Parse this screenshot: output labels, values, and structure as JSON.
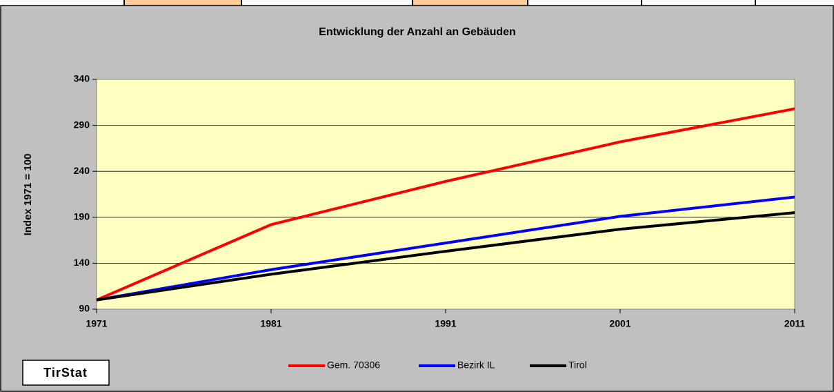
{
  "chart_data": {
    "type": "line",
    "title": "Entwicklung der Anzahl an Gebäuden",
    "y_label": "Index 1971 = 100",
    "x": [
      1971,
      1981,
      1991,
      2001,
      2011
    ],
    "xlim": [
      1971,
      2011
    ],
    "xticks": [
      1971,
      1981,
      1991,
      2001,
      2011
    ],
    "ylim": [
      90,
      340
    ],
    "yticks": [
      90,
      140,
      190,
      240,
      290,
      340
    ],
    "grid": true,
    "legend": "bottom",
    "series": [
      {
        "name": "Gem. 70306",
        "color": "#ff0000",
        "values": [
          100,
          182,
          229,
          272,
          308
        ]
      },
      {
        "name": "Bezirk IL",
        "color": "#0000ff",
        "values": [
          100,
          133,
          162,
          191,
          212
        ]
      },
      {
        "name": "Tirol",
        "color": "#000000",
        "values": [
          100,
          128,
          153,
          177,
          195
        ]
      }
    ],
    "logo": "TirStat"
  }
}
